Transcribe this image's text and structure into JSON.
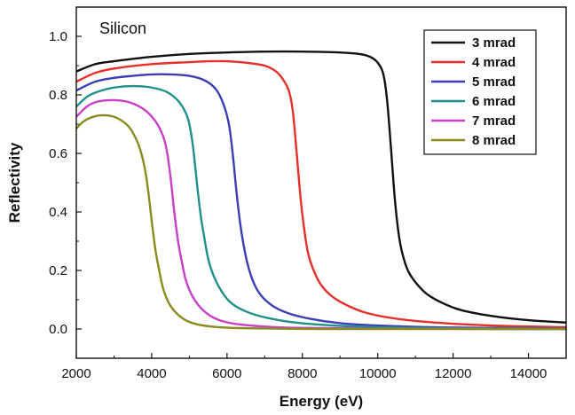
{
  "chart_data": {
    "type": "line",
    "annotation": "Silicon",
    "xlabel": "Energy (eV)",
    "ylabel": "Reflectivity",
    "xlim": [
      2000,
      15000
    ],
    "ylim": [
      -0.1,
      1.1
    ],
    "xticks": [
      2000,
      4000,
      6000,
      8000,
      10000,
      12000,
      14000
    ],
    "yticks": [
      0.0,
      0.2,
      0.4,
      0.6,
      0.8,
      1.0
    ],
    "ytick_labels": [
      "0.0",
      "0.2",
      "0.4",
      "0.6",
      "0.8",
      "1.0"
    ],
    "grid": false,
    "legend_position": "top-right",
    "series": [
      {
        "name": "3 mrad",
        "color": "#111111",
        "x": [
          2000,
          2500,
          3000,
          4000,
          5000,
          6000,
          7000,
          8000,
          9000,
          9500,
          9800,
          10000,
          10150,
          10250,
          10350,
          10450,
          10550,
          10650,
          10800,
          11000,
          11300,
          11700,
          12200,
          13000,
          14000,
          15000
        ],
        "y": [
          0.88,
          0.905,
          0.915,
          0.93,
          0.94,
          0.945,
          0.948,
          0.948,
          0.945,
          0.94,
          0.93,
          0.91,
          0.87,
          0.78,
          0.62,
          0.45,
          0.33,
          0.26,
          0.2,
          0.16,
          0.12,
          0.09,
          0.065,
          0.045,
          0.03,
          0.022
        ]
      },
      {
        "name": "4 mrad",
        "color": "#e8302a",
        "x": [
          2000,
          2500,
          3000,
          4000,
          5000,
          5500,
          6000,
          6500,
          7000,
          7300,
          7500,
          7650,
          7750,
          7850,
          7950,
          8050,
          8150,
          8300,
          8500,
          8800,
          9200,
          9700,
          10500,
          11500,
          13000,
          15000
        ],
        "y": [
          0.845,
          0.875,
          0.89,
          0.905,
          0.912,
          0.915,
          0.915,
          0.91,
          0.9,
          0.88,
          0.85,
          0.81,
          0.74,
          0.6,
          0.45,
          0.34,
          0.26,
          0.2,
          0.15,
          0.11,
          0.08,
          0.055,
          0.035,
          0.022,
          0.012,
          0.006
        ]
      },
      {
        "name": "5 mrad",
        "color": "#3a3fb5",
        "x": [
          2000,
          2500,
          3000,
          3500,
          4000,
          4500,
          5000,
          5400,
          5700,
          5900,
          6050,
          6150,
          6250,
          6350,
          6450,
          6550,
          6700,
          6900,
          7200,
          7600,
          8200,
          9000,
          10000,
          11500,
          13000,
          15000
        ],
        "y": [
          0.815,
          0.845,
          0.858,
          0.865,
          0.87,
          0.87,
          0.865,
          0.85,
          0.82,
          0.77,
          0.7,
          0.6,
          0.47,
          0.36,
          0.28,
          0.22,
          0.16,
          0.115,
          0.08,
          0.055,
          0.035,
          0.02,
          0.012,
          0.006,
          0.004,
          0.002
        ]
      },
      {
        "name": "6 mrad",
        "color": "#20908a",
        "x": [
          2000,
          2300,
          2600,
          3000,
          3500,
          4000,
          4400,
          4700,
          4900,
          5000,
          5100,
          5200,
          5300,
          5400,
          5500,
          5650,
          5850,
          6100,
          6500,
          7000,
          7800,
          8800,
          10000,
          11500,
          13000,
          15000
        ],
        "y": [
          0.76,
          0.795,
          0.812,
          0.825,
          0.83,
          0.825,
          0.81,
          0.78,
          0.74,
          0.7,
          0.62,
          0.5,
          0.39,
          0.31,
          0.24,
          0.18,
          0.13,
          0.09,
          0.06,
          0.04,
          0.022,
          0.012,
          0.006,
          0.003,
          0.002,
          0.001
        ]
      },
      {
        "name": "7 mrad",
        "color": "#c83fc8",
        "x": [
          2000,
          2300,
          2600,
          3000,
          3400,
          3800,
          4100,
          4300,
          4400,
          4500,
          4600,
          4700,
          4800,
          4900,
          5050,
          5250,
          5500,
          5800,
          6200,
          6800,
          7500,
          8500,
          10000,
          11500,
          13000,
          15000
        ],
        "y": [
          0.725,
          0.762,
          0.778,
          0.782,
          0.775,
          0.75,
          0.71,
          0.66,
          0.61,
          0.52,
          0.4,
          0.3,
          0.23,
          0.17,
          0.12,
          0.08,
          0.05,
          0.03,
          0.018,
          0.01,
          0.005,
          0.003,
          0.001,
          0.001,
          0.0,
          0.0
        ]
      },
      {
        "name": "8 mrad",
        "color": "#8a8a1e",
        "x": [
          2000,
          2200,
          2500,
          2800,
          3100,
          3400,
          3650,
          3800,
          3900,
          4000,
          4100,
          4200,
          4300,
          4450,
          4650,
          4900,
          5200,
          5600,
          6100,
          6800,
          7500,
          8500,
          10000,
          11500,
          13000,
          15000
        ],
        "y": [
          0.685,
          0.71,
          0.727,
          0.73,
          0.72,
          0.69,
          0.63,
          0.56,
          0.48,
          0.37,
          0.27,
          0.2,
          0.14,
          0.09,
          0.055,
          0.03,
          0.016,
          0.008,
          0.004,
          0.002,
          0.001,
          0.0,
          0.0,
          0.0,
          0.0,
          0.0
        ]
      }
    ]
  }
}
